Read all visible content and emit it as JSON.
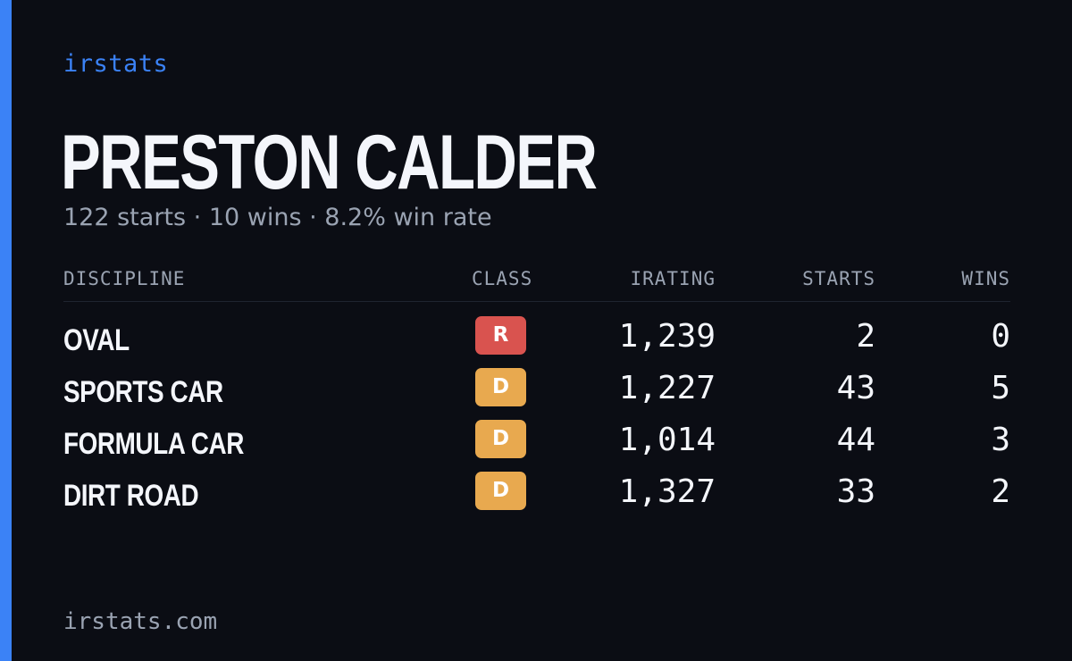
{
  "brand": "irstats",
  "driver": {
    "name": "PRESTON CALDER",
    "summary": "122 starts · 10 wins · 8.2% win rate"
  },
  "table": {
    "headers": {
      "discipline": "DISCIPLINE",
      "class": "CLASS",
      "irating": "IRATING",
      "starts": "STARTS",
      "wins": "WINS"
    },
    "rows": [
      {
        "discipline": "OVAL",
        "class": "R",
        "class_color": "#d9534f",
        "irating": "1,239",
        "starts": "2",
        "wins": "0"
      },
      {
        "discipline": "SPORTS CAR",
        "class": "D",
        "class_color": "#e8a94f",
        "irating": "1,227",
        "starts": "43",
        "wins": "5"
      },
      {
        "discipline": "FORMULA CAR",
        "class": "D",
        "class_color": "#e8a94f",
        "irating": "1,014",
        "starts": "44",
        "wins": "3"
      },
      {
        "discipline": "DIRT ROAD",
        "class": "D",
        "class_color": "#e8a94f",
        "irating": "1,327",
        "starts": "33",
        "wins": "2"
      }
    ]
  },
  "footer": {
    "url": "irstats.com"
  },
  "colors": {
    "background": "#0b0d14",
    "accent": "#3b82f6",
    "muted_text": "#9aa3b2",
    "primary_text": "#f4f6fb"
  }
}
